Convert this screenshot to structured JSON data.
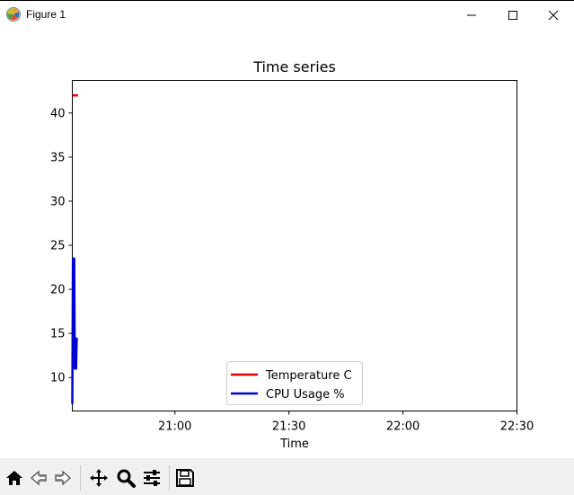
{
  "window": {
    "title": "Figure 1",
    "controls": [
      "minimize",
      "maximize",
      "close"
    ]
  },
  "chart_data": {
    "type": "line",
    "title": "Time series",
    "xlabel": "Time",
    "ylabel": "",
    "x_tick_labels": [
      "21:00",
      "21:30",
      "22:00",
      "22:30"
    ],
    "y_tick_labels": [
      "10",
      "15",
      "20",
      "25",
      "30",
      "35",
      "40"
    ],
    "y_ticks": [
      10,
      15,
      20,
      25,
      30,
      35,
      40
    ],
    "xlim": [
      "20:33",
      "22:30"
    ],
    "ylim": [
      6.2,
      43.7
    ],
    "legend_position": "lower center",
    "series": [
      {
        "name": "Temperature C",
        "color": "#e00000",
        "x": [
          "20:33:00",
          "20:33:30",
          "20:34:00",
          "20:34:30"
        ],
        "y": [
          42,
          42,
          42,
          42
        ]
      },
      {
        "name": "CPU Usage %",
        "color": "#0000d0",
        "x": [
          "20:33:00",
          "20:33:10",
          "20:33:20",
          "20:33:30",
          "20:33:40",
          "20:33:50",
          "20:34:00",
          "20:34:10"
        ],
        "y": [
          7,
          23.5,
          20,
          23.5,
          11,
          14.5,
          11,
          14.5
        ]
      }
    ]
  },
  "toolbar": {
    "buttons": [
      {
        "name": "home-icon",
        "tooltip": "Reset original view"
      },
      {
        "name": "back-icon",
        "tooltip": "Back"
      },
      {
        "name": "forward-icon",
        "tooltip": "Forward"
      },
      {
        "name": "pan-icon",
        "tooltip": "Pan"
      },
      {
        "name": "zoom-icon",
        "tooltip": "Zoom"
      },
      {
        "name": "configure-subplots-icon",
        "tooltip": "Configure subplots"
      },
      {
        "name": "save-icon",
        "tooltip": "Save"
      }
    ]
  }
}
